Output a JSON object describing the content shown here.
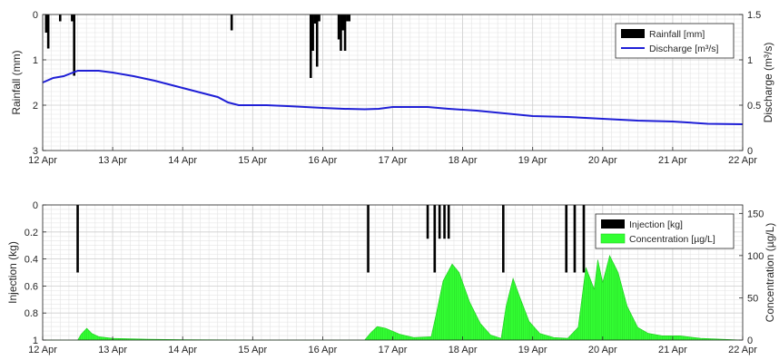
{
  "chart_data": [
    {
      "type": "bar+line",
      "x_ticks": [
        "12 Apr",
        "13 Apr",
        "14 Apr",
        "15 Apr",
        "16 Apr",
        "17 Apr",
        "18 Apr",
        "19 Apr",
        "20 Apr",
        "21 Apr",
        "22 Apr"
      ],
      "xlim_days": [
        12,
        22
      ],
      "left_axis": {
        "label": "Rainfall (mm)",
        "reversed": true,
        "ylim": [
          0,
          3
        ],
        "ticks": [
          "0",
          "1",
          "2",
          "3"
        ]
      },
      "right_axis": {
        "label": "Discharge (m³/s)",
        "ylim": [
          0,
          1.5
        ],
        "ticks": [
          "0",
          "0.5",
          "1",
          "1.5"
        ]
      },
      "grid": true,
      "legend": {
        "placement": "top-right",
        "entries": [
          {
            "label": "Rainfall [mm]",
            "color": "#000000"
          },
          {
            "label": "Discharge [m³/s]",
            "color": "#1f1fd6"
          }
        ]
      },
      "series": [
        {
          "name": "Rainfall [mm]",
          "kind": "bar",
          "axis": "left",
          "color": "#000000",
          "points": [
            [
              12.05,
              0.4
            ],
            [
              12.08,
              0.75
            ],
            [
              12.25,
              0.15
            ],
            [
              12.42,
              0.15
            ],
            [
              12.45,
              1.35
            ],
            [
              14.7,
              0.35
            ],
            [
              15.83,
              1.4
            ],
            [
              15.86,
              0.8
            ],
            [
              15.89,
              0.2
            ],
            [
              15.92,
              1.15
            ],
            [
              15.95,
              0.15
            ],
            [
              16.23,
              0.55
            ],
            [
              16.26,
              0.8
            ],
            [
              16.29,
              0.35
            ],
            [
              16.32,
              0.8
            ],
            [
              16.35,
              0.15
            ],
            [
              16.38,
              0.15
            ]
          ]
        },
        {
          "name": "Discharge [m³/s]",
          "kind": "line",
          "axis": "right",
          "color": "#1f1fd6",
          "points": [
            [
              12.0,
              0.75
            ],
            [
              12.15,
              0.8
            ],
            [
              12.3,
              0.82
            ],
            [
              12.5,
              0.88
            ],
            [
              12.8,
              0.88
            ],
            [
              13.0,
              0.86
            ],
            [
              13.3,
              0.82
            ],
            [
              13.6,
              0.77
            ],
            [
              13.9,
              0.71
            ],
            [
              14.2,
              0.65
            ],
            [
              14.5,
              0.59
            ],
            [
              14.65,
              0.53
            ],
            [
              14.8,
              0.5
            ],
            [
              15.2,
              0.5
            ],
            [
              15.5,
              0.49
            ],
            [
              16.0,
              0.47
            ],
            [
              16.3,
              0.46
            ],
            [
              16.6,
              0.455
            ],
            [
              16.8,
              0.46
            ],
            [
              17.0,
              0.48
            ],
            [
              17.5,
              0.48
            ],
            [
              17.8,
              0.46
            ],
            [
              18.2,
              0.44
            ],
            [
              18.6,
              0.41
            ],
            [
              19.0,
              0.38
            ],
            [
              19.5,
              0.37
            ],
            [
              20.0,
              0.35
            ],
            [
              20.5,
              0.33
            ],
            [
              21.0,
              0.32
            ],
            [
              21.5,
              0.295
            ],
            [
              22.0,
              0.29
            ]
          ]
        }
      ]
    },
    {
      "type": "bar+area",
      "x_ticks": [
        "12 Apr",
        "13 Apr",
        "14 Apr",
        "15 Apr",
        "16 Apr",
        "17 Apr",
        "18 Apr",
        "19 Apr",
        "20 Apr",
        "21 Apr",
        "22 Apr"
      ],
      "xlim_days": [
        12,
        22
      ],
      "left_axis": {
        "label": "Injection (kg)",
        "reversed": true,
        "ylim": [
          0,
          1
        ],
        "ticks": [
          "0",
          "0.2",
          "0.4",
          "0.6",
          "0.8",
          "1"
        ]
      },
      "right_axis": {
        "label": "Concentration (µg/L)",
        "ylim": [
          0,
          160
        ],
        "ticks": [
          "0",
          "50",
          "100",
          "150"
        ]
      },
      "grid": true,
      "legend": {
        "placement": "top-right",
        "entries": [
          {
            "label": "Injection [kg]",
            "color": "#000000"
          },
          {
            "label": "Concentration [µg/L]",
            "color": "#33ff33"
          }
        ]
      },
      "series": [
        {
          "name": "Injection [kg]",
          "kind": "bar",
          "axis": "left",
          "color": "#000000",
          "points": [
            [
              12.5,
              0.5
            ],
            [
              16.65,
              0.5
            ],
            [
              17.5,
              0.25
            ],
            [
              17.6,
              0.5
            ],
            [
              17.67,
              0.25
            ],
            [
              17.74,
              0.25
            ],
            [
              17.8,
              0.25
            ],
            [
              18.58,
              0.5
            ],
            [
              19.48,
              0.5
            ],
            [
              19.6,
              0.5
            ],
            [
              19.73,
              0.5
            ]
          ]
        },
        {
          "name": "Concentration [µg/L]",
          "kind": "area",
          "axis": "right",
          "color": "#33ff33",
          "points": [
            [
              12.0,
              0
            ],
            [
              12.5,
              0
            ],
            [
              12.55,
              7
            ],
            [
              12.63,
              14
            ],
            [
              12.7,
              8
            ],
            [
              12.8,
              4
            ],
            [
              13.0,
              2
            ],
            [
              13.5,
              1
            ],
            [
              14.0,
              0.5
            ],
            [
              15.0,
              0
            ],
            [
              16.6,
              0
            ],
            [
              16.68,
              8
            ],
            [
              16.78,
              16
            ],
            [
              16.9,
              14
            ],
            [
              17.1,
              7
            ],
            [
              17.3,
              3
            ],
            [
              17.55,
              4
            ],
            [
              17.62,
              30
            ],
            [
              17.72,
              70
            ],
            [
              17.85,
              90
            ],
            [
              17.95,
              80
            ],
            [
              18.1,
              45
            ],
            [
              18.25,
              20
            ],
            [
              18.4,
              6
            ],
            [
              18.55,
              2
            ],
            [
              18.62,
              40
            ],
            [
              18.72,
              73
            ],
            [
              18.82,
              50
            ],
            [
              18.95,
              22
            ],
            [
              19.1,
              8
            ],
            [
              19.3,
              3
            ],
            [
              19.5,
              2
            ],
            [
              19.65,
              15
            ],
            [
              19.76,
              86
            ],
            [
              19.88,
              60
            ],
            [
              19.93,
              95
            ],
            [
              20.0,
              68
            ],
            [
              20.1,
              100
            ],
            [
              20.22,
              80
            ],
            [
              20.35,
              40
            ],
            [
              20.5,
              15
            ],
            [
              20.65,
              8
            ],
            [
              20.85,
              5
            ],
            [
              21.1,
              5
            ],
            [
              21.4,
              2
            ],
            [
              21.7,
              1
            ],
            [
              22.0,
              0
            ]
          ]
        }
      ]
    }
  ]
}
